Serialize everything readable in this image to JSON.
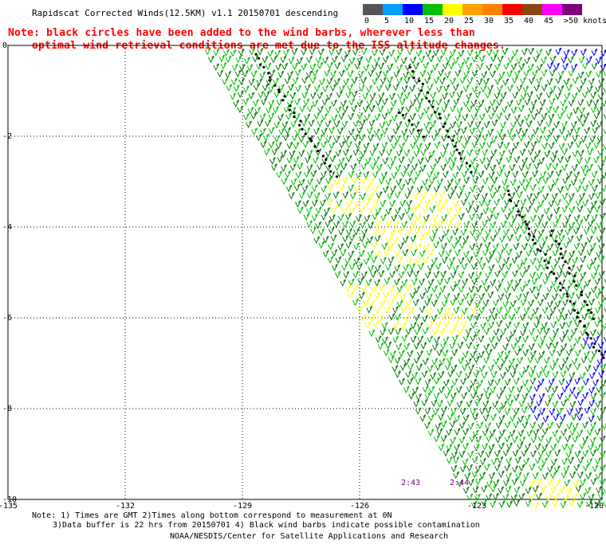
{
  "title": "Rapidscat Corrected Winds(12.5KM) v1.1 20150701 descending",
  "note_line1": "Note: black circles have been added to the wind barbs, wherever less than",
  "note_line2": "optimal wind retrieval conditions are met due to the ISS altitude changes.",
  "legend": {
    "unit_label": ">50 knots",
    "labels": [
      "0",
      "5",
      "10",
      "15",
      "20",
      "25",
      "30",
      "35",
      "40",
      "45"
    ],
    "colors": [
      "#555555",
      "#00a0ff",
      "#0000ff",
      "#00c000",
      "#ffff00",
      "#ffa000",
      "#ff8000",
      "#ff0000",
      "#8b4513",
      "#ff00ff",
      "#800080"
    ]
  },
  "map": {
    "x_ticks": [
      "-135",
      "-132",
      "-129",
      "-126",
      "-123",
      "-120"
    ],
    "y_ticks": [
      "0",
      "-2",
      "-4",
      "-6",
      "-8",
      "-10"
    ],
    "time_labels": [
      "2:43",
      "2:44"
    ],
    "time_color": "#800080",
    "barb_colors": {
      "light": "#00c000",
      "dark": "#008000",
      "yellow": "#ffff00",
      "blue": "#0000ff",
      "contaminated": "#000000"
    }
  },
  "footer": {
    "line1": "Note: 1) Times are GMT 2)Times along bottom correspond to measurement at 0N",
    "line2": "3)Data buffer is 22 hrs from 20150701 4) Black wind barbs indicate possible contamination",
    "line3": "NOAA/NESDIS/Center for Satellite Applications and Research"
  }
}
